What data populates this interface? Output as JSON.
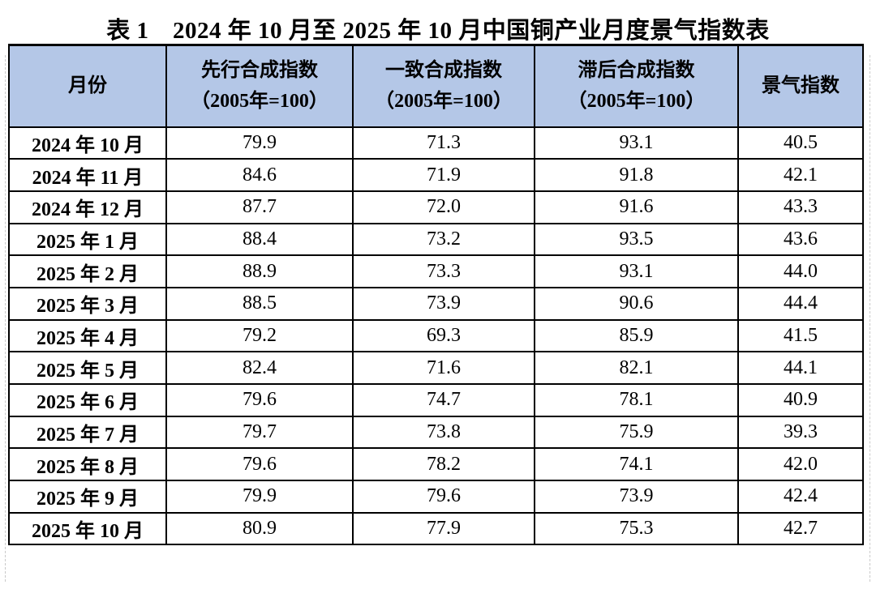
{
  "title": "表 1　2024 年 10 月至 2025 年 10 月中国铜产业月度景气指数表",
  "colors": {
    "header_bg": "#b4c7e7",
    "border": "#000000",
    "page_bg": "#ffffff"
  },
  "table": {
    "columns": [
      {
        "key": "month",
        "label": "月份",
        "sublabel": ""
      },
      {
        "key": "leading",
        "label": "先行合成指数",
        "sublabel": "（2005年=100）"
      },
      {
        "key": "coincident",
        "label": "一致合成指数",
        "sublabel": "（2005年=100）"
      },
      {
        "key": "lagging",
        "label": "滞后合成指数",
        "sublabel": "（2005年=100）"
      },
      {
        "key": "boom",
        "label": "景气指数",
        "sublabel": ""
      }
    ],
    "rows": [
      {
        "month": "2024 年 10 月",
        "leading": "79.9",
        "coincident": "71.3",
        "lagging": "93.1",
        "boom": "40.5"
      },
      {
        "month": "2024 年 11 月",
        "leading": "84.6",
        "coincident": "71.9",
        "lagging": "91.8",
        "boom": "42.1"
      },
      {
        "month": "2024 年 12 月",
        "leading": "87.7",
        "coincident": "72.0",
        "lagging": "91.6",
        "boom": "43.3"
      },
      {
        "month": "2025 年 1 月",
        "leading": "88.4",
        "coincident": "73.2",
        "lagging": "93.5",
        "boom": "43.6"
      },
      {
        "month": "2025 年 2 月",
        "leading": "88.9",
        "coincident": "73.3",
        "lagging": "93.1",
        "boom": "44.0"
      },
      {
        "month": "2025 年 3 月",
        "leading": "88.5",
        "coincident": "73.9",
        "lagging": "90.6",
        "boom": "44.4"
      },
      {
        "month": "2025 年 4 月",
        "leading": "79.2",
        "coincident": "69.3",
        "lagging": "85.9",
        "boom": "41.5"
      },
      {
        "month": "2025 年 5 月",
        "leading": "82.4",
        "coincident": "71.6",
        "lagging": "82.1",
        "boom": "44.1"
      },
      {
        "month": "2025 年 6 月",
        "leading": "79.6",
        "coincident": "74.7",
        "lagging": "78.1",
        "boom": "40.9"
      },
      {
        "month": "2025 年 7 月",
        "leading": "79.7",
        "coincident": "73.8",
        "lagging": "75.9",
        "boom": "39.3"
      },
      {
        "month": "2025 年 8 月",
        "leading": "79.6",
        "coincident": "78.2",
        "lagging": "74.1",
        "boom": "42.0"
      },
      {
        "month": "2025 年 9 月",
        "leading": "79.9",
        "coincident": "79.6",
        "lagging": "73.9",
        "boom": "42.4"
      },
      {
        "month": "2025 年 10 月",
        "leading": "80.9",
        "coincident": "77.9",
        "lagging": "75.3",
        "boom": "42.7"
      }
    ]
  }
}
